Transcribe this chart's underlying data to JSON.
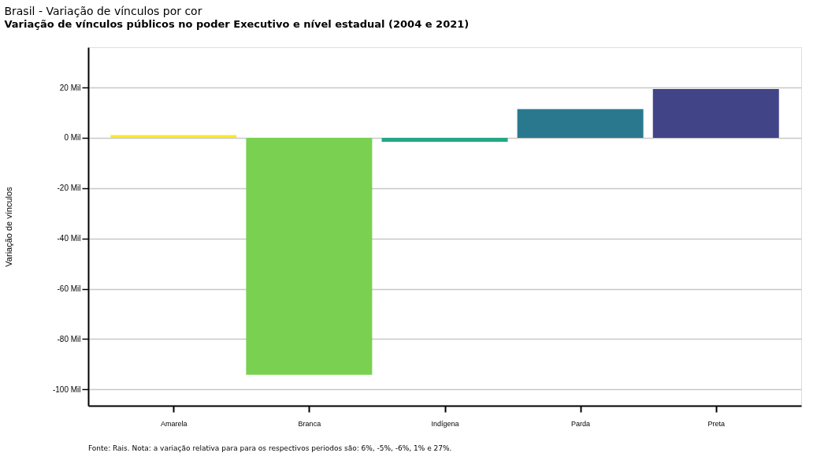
{
  "chart_data": {
    "type": "bar",
    "title": "Brasil - Variação de vínculos por cor",
    "subtitle": "Variação de vínculos públicos no poder Executivo e nível estadual (2004 e 2021)",
    "ylabel": "Variação de vínculos",
    "categories": [
      "Amarela",
      "Branca",
      "Indígena",
      "Parda",
      "Preta"
    ],
    "values": [
      1.1,
      -94.2,
      -1.6,
      11.4,
      19.4
    ],
    "colors": [
      "#fde725",
      "#7ad151",
      "#22a884",
      "#2a788e",
      "#414487"
    ],
    "ylim": [
      -106.5,
      36
    ],
    "yticks": [
      {
        "value": -100,
        "label": "-100 Mil"
      },
      {
        "value": -80,
        "label": "-80 Mil"
      },
      {
        "value": -60,
        "label": "-60 Mil"
      },
      {
        "value": -40,
        "label": "-40 Mil"
      },
      {
        "value": -20,
        "label": "-20 Mil"
      },
      {
        "value": 0,
        "label": "0 Mil"
      },
      {
        "value": 20,
        "label": "20 Mil"
      }
    ],
    "grid": "y",
    "annotations": [
      "Fonte: Rais. Nota: a variação relativa para para os respectivos periodos são: 6%, -5%, -6%, 1% e 27%."
    ]
  }
}
